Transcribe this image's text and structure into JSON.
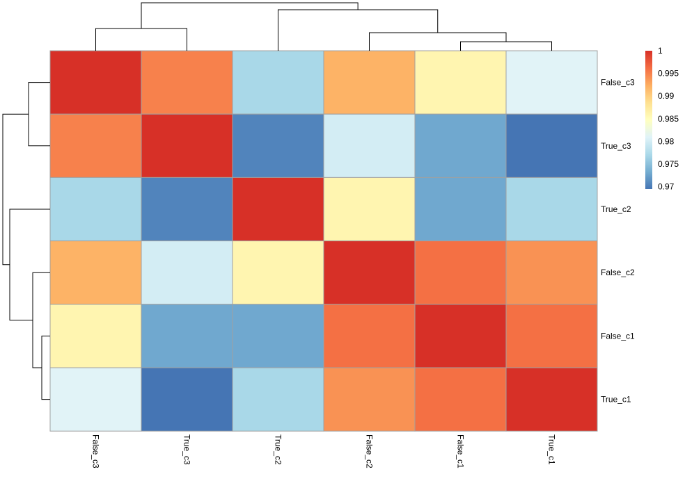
{
  "chart_data": {
    "type": "heatmap",
    "title": "",
    "rows": [
      "False_c3",
      "True_c3",
      "True_c2",
      "False_c2",
      "False_c1",
      "True_c1"
    ],
    "columns": [
      "False_c3",
      "True_c3",
      "True_c2",
      "False_c2",
      "False_c1",
      "True_c1"
    ],
    "values": [
      [
        1.0,
        0.995,
        0.977,
        0.992,
        0.986,
        0.981
      ],
      [
        0.995,
        1.0,
        0.9705,
        0.98,
        0.973,
        0.9695
      ],
      [
        0.977,
        0.9705,
        1.0,
        0.986,
        0.973,
        0.977
      ],
      [
        0.992,
        0.98,
        0.986,
        1.0,
        0.996,
        0.994
      ],
      [
        0.986,
        0.973,
        0.973,
        0.996,
        1.0,
        0.996
      ],
      [
        0.981,
        0.9695,
        0.977,
        0.994,
        0.996,
        1.0
      ]
    ],
    "color_scale": {
      "range": [
        0.9695,
        1.0
      ],
      "colors": [
        "#4575B4",
        "#74ADD1",
        "#ABD9E9",
        "#E0F3F8",
        "#FFFFBF",
        "#FEE090",
        "#FDAE61",
        "#F46D43",
        "#D73027"
      ]
    },
    "legend": {
      "placement": "right",
      "ticks": [
        "1",
        "0.995",
        "0.99",
        "0.985",
        "0.98",
        "0.975",
        "0.97"
      ],
      "tick_values": [
        1,
        0.995,
        0.99,
        0.985,
        0.98,
        0.975,
        0.97
      ]
    },
    "row_dendrogram": true,
    "column_dendrogram": true
  }
}
